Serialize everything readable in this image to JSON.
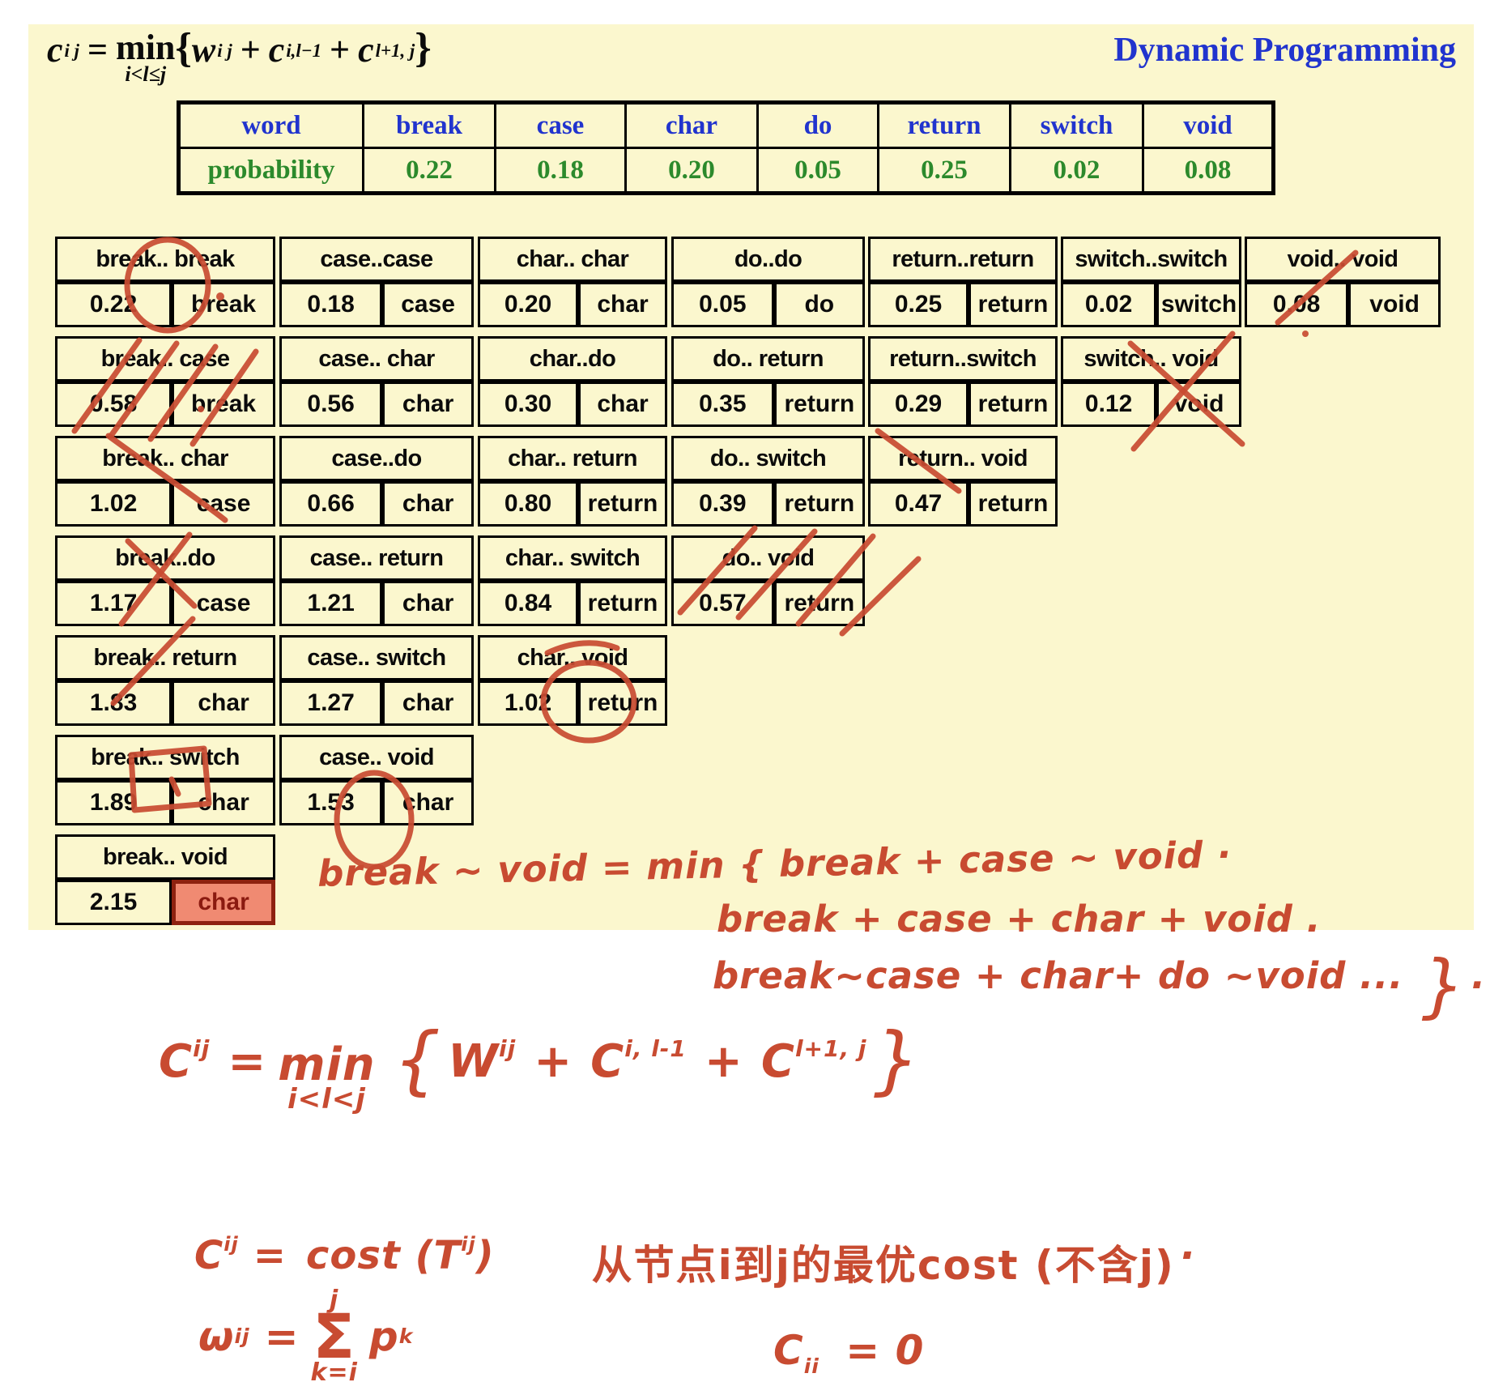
{
  "colors": {
    "slide_bg": "#FBF7CE",
    "title_blue": "#2134CE",
    "prob_green": "#2C8A2C",
    "ink_red": "#C84B31",
    "highlight_fill": "#F08A72",
    "highlight_border": "#8E2210"
  },
  "slide": {
    "title": "Dynamic Programming",
    "formula": {
      "c": "c",
      "c_sub": "i j",
      "eq": "=",
      "min": "min",
      "min_sub": "i<l≤j",
      "open": "{",
      "w": "w",
      "w_sub": "i j",
      "plus1": "+",
      "c2": "c",
      "c2_sub": "i,l−1",
      "plus2": "+",
      "c3": "c",
      "c3_sub": "l+1, j",
      "close": "}"
    },
    "word_table": {
      "row1_label": "word",
      "row2_label": "probability",
      "columns": [
        {
          "word": "break",
          "prob": "0.22"
        },
        {
          "word": "case",
          "prob": "0.18"
        },
        {
          "word": "char",
          "prob": "0.20"
        },
        {
          "word": "do",
          "prob": "0.05"
        },
        {
          "word": "return",
          "prob": "0.25"
        },
        {
          "word": "switch",
          "prob": "0.02"
        },
        {
          "word": "void",
          "prob": "0.08"
        }
      ]
    },
    "dp_table": {
      "rows": [
        {
          "cells": [
            {
              "range": "break.. break",
              "cost": "0.22",
              "root": "break"
            },
            {
              "range": "case..case",
              "cost": "0.18",
              "root": "case"
            },
            {
              "range": "char.. char",
              "cost": "0.20",
              "root": "char"
            },
            {
              "range": "do..do",
              "cost": "0.05",
              "root": "do"
            },
            {
              "range": "return..return",
              "cost": "0.25",
              "root": "return"
            },
            {
              "range": "switch..switch",
              "cost": "0.02",
              "root": "switch"
            },
            {
              "range": "void.. void",
              "cost": "0.08",
              "root": "void"
            }
          ]
        },
        {
          "cells": [
            {
              "range": "break.. case",
              "cost": "0.58",
              "root": "break"
            },
            {
              "range": "case.. char",
              "cost": "0.56",
              "root": "char"
            },
            {
              "range": "char..do",
              "cost": "0.30",
              "root": "char"
            },
            {
              "range": "do.. return",
              "cost": "0.35",
              "root": "return"
            },
            {
              "range": "return..switch",
              "cost": "0.29",
              "root": "return"
            },
            {
              "range": "switch.. void",
              "cost": "0.12",
              "root": "void"
            }
          ]
        },
        {
          "cells": [
            {
              "range": "break.. char",
              "cost": "1.02",
              "root": "case"
            },
            {
              "range": "case..do",
              "cost": "0.66",
              "root": "char"
            },
            {
              "range": "char.. return",
              "cost": "0.80",
              "root": "return"
            },
            {
              "range": "do.. switch",
              "cost": "0.39",
              "root": "return"
            },
            {
              "range": "return.. void",
              "cost": "0.47",
              "root": "return"
            }
          ]
        },
        {
          "cells": [
            {
              "range": "break..do",
              "cost": "1.17",
              "root": "case"
            },
            {
              "range": "case.. return",
              "cost": "1.21",
              "root": "char"
            },
            {
              "range": "char.. switch",
              "cost": "0.84",
              "root": "return"
            },
            {
              "range": "do.. void",
              "cost": "0.57",
              "root": "return"
            }
          ]
        },
        {
          "cells": [
            {
              "range": "break.. return",
              "cost": "1.83",
              "root": "char"
            },
            {
              "range": "case.. switch",
              "cost": "1.27",
              "root": "char"
            },
            {
              "range": "char.. void",
              "cost": "1.02",
              "root": "return"
            }
          ]
        },
        {
          "cells": [
            {
              "range": "break.. switch",
              "cost": "1.89",
              "root": "char"
            },
            {
              "range": "case.. void",
              "cost": "1.53",
              "root": "char"
            }
          ]
        },
        {
          "cells": [
            {
              "range": "break.. void",
              "cost": "2.15",
              "root": "char",
              "highlight": true
            }
          ]
        }
      ]
    }
  },
  "annotations": {
    "line1": "break ~ void  =  min { break + case ~ void ·",
    "line2": "break + case + char + void  .",
    "line3": "break~case + char+ do ~void  ...",
    "line3_brace": "}",
    "line3_dot": ".",
    "rec": {
      "C": "C",
      "Csub": "ij",
      "eq": "=",
      "min": "min",
      "minsub": "i<l<j",
      "open": "{",
      "W": "W",
      "Wsub": "ij",
      "plus1": "+",
      "C1": "C",
      "C1sub": "i, l-1",
      "plus2": "+",
      "C2": "C",
      "C2sub": "l+1, j",
      "close": "}"
    },
    "cost": {
      "C": "C",
      "Csub": "ij",
      "eq": "=",
      "fn": "cost (T",
      "Tsub": "ij",
      "paren": ")"
    },
    "chinese": "从节点i到j的最优cost (不含j)",
    "chinese_dot": "·",
    "weight": {
      "w": "ω",
      "wsub": "ij",
      "eq": "=",
      "top": "j",
      "sigma": "Σ",
      "bottom": "k=i",
      "p": "p",
      "psub": "k"
    },
    "base": {
      "C": "C",
      "Csub": "ii",
      "rest": "= 0"
    }
  }
}
